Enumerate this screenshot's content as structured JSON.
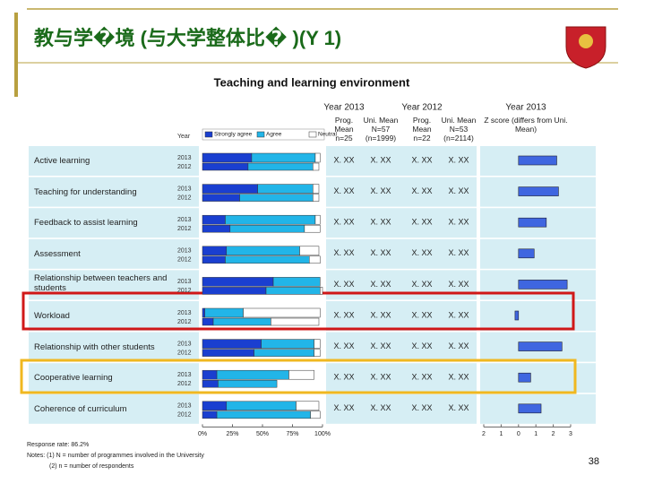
{
  "slide": {
    "title": "教与学�境 (与大学整体比� )(Y 1)",
    "page_number": "38"
  },
  "chart_data": {
    "type": "bar",
    "title": "Teaching and learning environment",
    "year_label": "Year",
    "categories": [
      "Active learning",
      "Teaching for understanding",
      "Feedback to assist learning",
      "Assessment",
      "Relationship between teachers and students",
      "Workload",
      "Relationship with other students",
      "Cooperative learning",
      "Coherence of curriculum"
    ],
    "years": [
      "2013",
      "2012"
    ],
    "series": [
      {
        "name": "Strongly agree",
        "color": "#1a3fd0",
        "values": [
          [
            41,
            38
          ],
          [
            46,
            31
          ],
          [
            19,
            23
          ],
          [
            20,
            19
          ],
          [
            59,
            53
          ],
          [
            2,
            9
          ],
          [
            49,
            43
          ],
          [
            12,
            13
          ],
          [
            20,
            12
          ]
        ]
      },
      {
        "name": "Agree",
        "color": "#22b5e8",
        "values": [
          [
            53,
            54
          ],
          [
            46,
            61
          ],
          [
            75,
            62
          ],
          [
            61,
            70
          ],
          [
            39,
            45
          ],
          [
            32,
            48
          ],
          [
            44,
            50
          ],
          [
            60,
            49
          ],
          [
            58,
            78
          ]
        ]
      },
      {
        "name": "Neutral",
        "color": "#ffffff",
        "values": [
          [
            4,
            5
          ],
          [
            5,
            5
          ],
          [
            4,
            13
          ],
          [
            16,
            9
          ],
          [
            0,
            2
          ],
          [
            64,
            40
          ],
          [
            5,
            5
          ],
          [
            21,
            0
          ],
          [
            19,
            8
          ]
        ]
      }
    ],
    "xlim": [
      0,
      100
    ],
    "xticks": [
      {
        "value": 0,
        "label": "0%"
      },
      {
        "value": 25,
        "label": "25%"
      },
      {
        "value": 50,
        "label": "50%"
      },
      {
        "value": 75,
        "label": "75%"
      },
      {
        "value": 100,
        "label": "100%"
      }
    ],
    "column_groups": [
      "Year 2013",
      "Year 2012",
      "Year 2013"
    ],
    "columns": [
      "Prog. Mean n=25",
      "Uni. Mean N=57 (n=1999)",
      "Prog. Mean n=22",
      "Uni. Mean N=53 (n=2114)",
      "Z score (differs from Uni. Mean)"
    ],
    "stats": [
      [
        "X. XX",
        "X. XX",
        "X. XX",
        "X. XX"
      ],
      [
        "X. XX",
        "X. XX",
        "X. XX",
        "X. XX"
      ],
      [
        "X. XX",
        "X. XX",
        "X. XX",
        "X. XX"
      ],
      [
        "X. XX",
        "X. XX",
        "X. XX",
        "X. XX"
      ],
      [
        "X. XX",
        "X. XX",
        "X. XX",
        "X. XX"
      ],
      [
        "X. XX",
        "X. XX",
        "X. XX",
        "X. XX"
      ],
      [
        "X. XX",
        "X. XX",
        "X. XX",
        "X. XX"
      ],
      [
        "X. XX",
        "X. XX",
        "X. XX",
        "X. XX"
      ],
      [
        "X. XX",
        "X. XX",
        "X. XX",
        "X. XX"
      ]
    ],
    "z_scores": {
      "color": "#3f66e0",
      "values": [
        2.2,
        2.3,
        1.6,
        0.9,
        2.8,
        -0.2,
        2.5,
        0.7,
        1.3
      ],
      "xlim": [
        -2,
        3
      ],
      "xticks": [
        {
          "value": -2,
          "label": "2"
        },
        {
          "value": -1,
          "label": "1"
        },
        0,
        1,
        2,
        3
      ]
    },
    "notes": [
      "Response rate: 86.2%",
      "Notes: (1) N = number of programmes involved in the University",
      "(2) n = number of respondents"
    ]
  }
}
